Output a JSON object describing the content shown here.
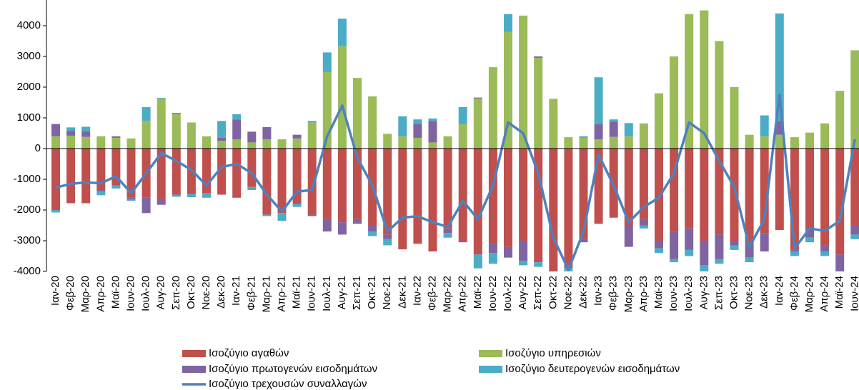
{
  "chart_data": {
    "type": "bar",
    "categories": [
      "Ιαν-20",
      "Φεβ-20",
      "Μαρ-20",
      "Απρ-20",
      "Μαϊ-20",
      "Ιουν-20",
      "Ιουλ-20",
      "Αυγ-20",
      "Σεπ-20",
      "Οκτ-20",
      "Νοε-20",
      "Δεκ-20",
      "Ιαν-21",
      "Φεβ-21",
      "Μαρ-21",
      "Απρ-21",
      "Μαϊ-21",
      "Ιουν-21",
      "Ιουλ-21",
      "Αυγ-21",
      "Σεπ-21",
      "Οκτ-21",
      "Νοε-21",
      "Δεκ-21",
      "Ιαν-22",
      "Φεβ-22",
      "Μαρ-22",
      "Απρ-22",
      "Μαϊ-22",
      "Ιουν-22",
      "Ιουλ-22",
      "Αυγ-22",
      "Σεπ-22",
      "Οκτ-22",
      "Νοε-22",
      "Δεκ-22",
      "Ιαν-23",
      "Φεβ-23",
      "Μαρ-23",
      "Απρ-23",
      "Μαϊ-23",
      "Ιουν-23",
      "Ιουλ-23",
      "Αυγ-23",
      "Σεπ-23",
      "Οκτ-23",
      "Νοε-23",
      "Δεκ-23",
      "Ιαν-24",
      "Φεβ-24",
      "Μαρ-24",
      "Απρ-24",
      "Μαϊ-24",
      "Ιουν-24"
    ],
    "series": [
      {
        "name": "Ισοζύγιο αγαθών",
        "color": "#c0504d",
        "values": [
          -2000,
          -1780,
          -1780,
          -1350,
          -1200,
          -1600,
          -1600,
          -1650,
          -1500,
          -1480,
          -1450,
          -1500,
          -1600,
          -1250,
          -2150,
          -2100,
          -1800,
          -2150,
          -2300,
          -2400,
          -2300,
          -2500,
          -2800,
          -3280,
          -3100,
          -3350,
          -2600,
          -3000,
          -3450,
          -3100,
          -3200,
          -3000,
          -3700,
          -4000,
          -3800,
          -2950,
          -2450,
          -2250,
          -2500,
          -2300,
          -3000,
          -2700,
          -2600,
          -3000,
          -2800,
          -3000,
          -3100,
          -2750,
          -2650,
          -3300,
          -2600,
          -3150,
          -3450,
          -2500
        ]
      },
      {
        "name": "Ισοζύγιο υπηρεσιών",
        "color": "#9bbb59",
        "values": [
          400,
          420,
          380,
          400,
          350,
          330,
          900,
          1620,
          1130,
          850,
          400,
          250,
          300,
          200,
          300,
          300,
          330,
          850,
          2500,
          3330,
          2300,
          1700,
          480,
          400,
          350,
          200,
          400,
          800,
          1630,
          2650,
          3800,
          4330,
          2950,
          1620,
          370,
          350,
          300,
          380,
          400,
          820,
          1800,
          3000,
          4380,
          4500,
          3500,
          2000,
          450,
          400,
          450,
          370,
          520,
          820,
          1880,
          3200
        ]
      },
      {
        "name": "Ισοζύγιο πρωτογενών εισοδημάτων",
        "color": "#8064a2",
        "values": [
          400,
          150,
          180,
          -50,
          50,
          -50,
          -500,
          -180,
          30,
          0,
          0,
          100,
          650,
          350,
          400,
          0,
          120,
          -50,
          -400,
          -400,
          -150,
          -200,
          -150,
          0,
          450,
          700,
          -150,
          -50,
          30,
          -300,
          -350,
          -650,
          50,
          0,
          -100,
          -100,
          500,
          500,
          -700,
          -200,
          -250,
          -900,
          -700,
          -800,
          -800,
          -150,
          -450,
          -600,
          450,
          -50,
          -300,
          -200,
          -550,
          -300
        ]
      },
      {
        "name": "Ισοζύγιο δευτερογενών εισοδημάτων",
        "color": "#4bacc6",
        "values": [
          -80,
          120,
          150,
          -120,
          -100,
          -50,
          450,
          30,
          -70,
          -100,
          -150,
          550,
          170,
          -100,
          -50,
          -250,
          -100,
          50,
          630,
          900,
          0,
          -150,
          -200,
          650,
          150,
          80,
          -150,
          550,
          -450,
          -350,
          580,
          -150,
          -150,
          0,
          -100,
          50,
          1520,
          70,
          430,
          -100,
          -150,
          -100,
          -200,
          -200,
          -150,
          -150,
          -150,
          680,
          3500,
          -150,
          -150,
          -150,
          0,
          -150
        ]
      },
      {
        "name": "Ισοζύγιο τρεχουσών συναλλαγών",
        "color": "#4f81bd",
        "type": "line",
        "values": [
          -1270,
          -1150,
          -1100,
          -1130,
          -900,
          -1450,
          -800,
          -150,
          -400,
          -700,
          -1200,
          -600,
          -500,
          -800,
          -1500,
          -2050,
          -1400,
          -1350,
          400,
          1400,
          -300,
          -1200,
          -2700,
          -2250,
          -2200,
          -2400,
          -2550,
          -1700,
          -2300,
          -1200,
          850,
          500,
          -800,
          -2900,
          -3950,
          -2700,
          -200,
          -1200,
          -2400,
          -1900,
          -1600,
          -800,
          850,
          500,
          -400,
          -1250,
          -3200,
          -2300,
          1750,
          -3250,
          -2600,
          -2680,
          -2350,
          300
        ]
      }
    ],
    "ylim": [
      -4000,
      4500
    ],
    "yticks": [
      -4000,
      -3000,
      -2000,
      -1000,
      0,
      1000,
      2000,
      3000,
      4000
    ]
  }
}
